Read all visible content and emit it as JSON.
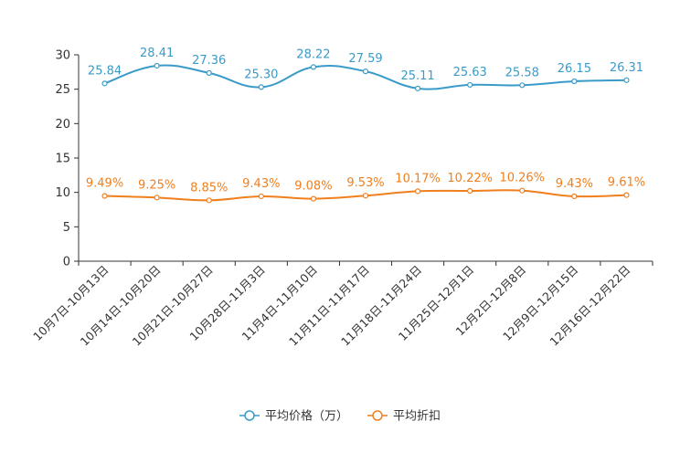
{
  "chart_data": {
    "type": "line",
    "title": "",
    "xlabel": "",
    "ylabel": "",
    "ylim": [
      0,
      30
    ],
    "yticks": [
      0,
      5,
      10,
      15,
      20,
      25,
      30
    ],
    "grid": false,
    "legend_position": "bottom-center",
    "categories": [
      "10月7日-10月13日",
      "10月14日-10月20日",
      "10月21日-10月27日",
      "10月28日-11月3日",
      "11月4日-11月10日",
      "11月11日-11月17日",
      "11月18日-11月24日",
      "11月25日-12月1日",
      "12月2日-12月8日",
      "12月9日-12月15日",
      "12月16日-12月22日"
    ],
    "series": [
      {
        "name": "平均价格（万）",
        "color": "#3a9bc8",
        "values": [
          25.84,
          28.41,
          27.36,
          25.3,
          28.22,
          27.59,
          25.11,
          25.63,
          25.58,
          26.15,
          26.31
        ],
        "labels": [
          "25.84",
          "28.41",
          "27.36",
          "25.30",
          "28.22",
          "27.59",
          "25.11",
          "25.63",
          "25.58",
          "26.15",
          "26.31"
        ]
      },
      {
        "name": "平均折扣",
        "color": "#f07f1e",
        "values": [
          9.49,
          9.25,
          8.85,
          9.43,
          9.08,
          9.53,
          10.17,
          10.22,
          10.26,
          9.43,
          9.61
        ],
        "labels": [
          "9.49%",
          "9.25%",
          "8.85%",
          "9.43%",
          "9.08%",
          "9.53%",
          "10.17%",
          "10.22%",
          "10.26%",
          "9.43%",
          "9.61%"
        ]
      }
    ]
  }
}
